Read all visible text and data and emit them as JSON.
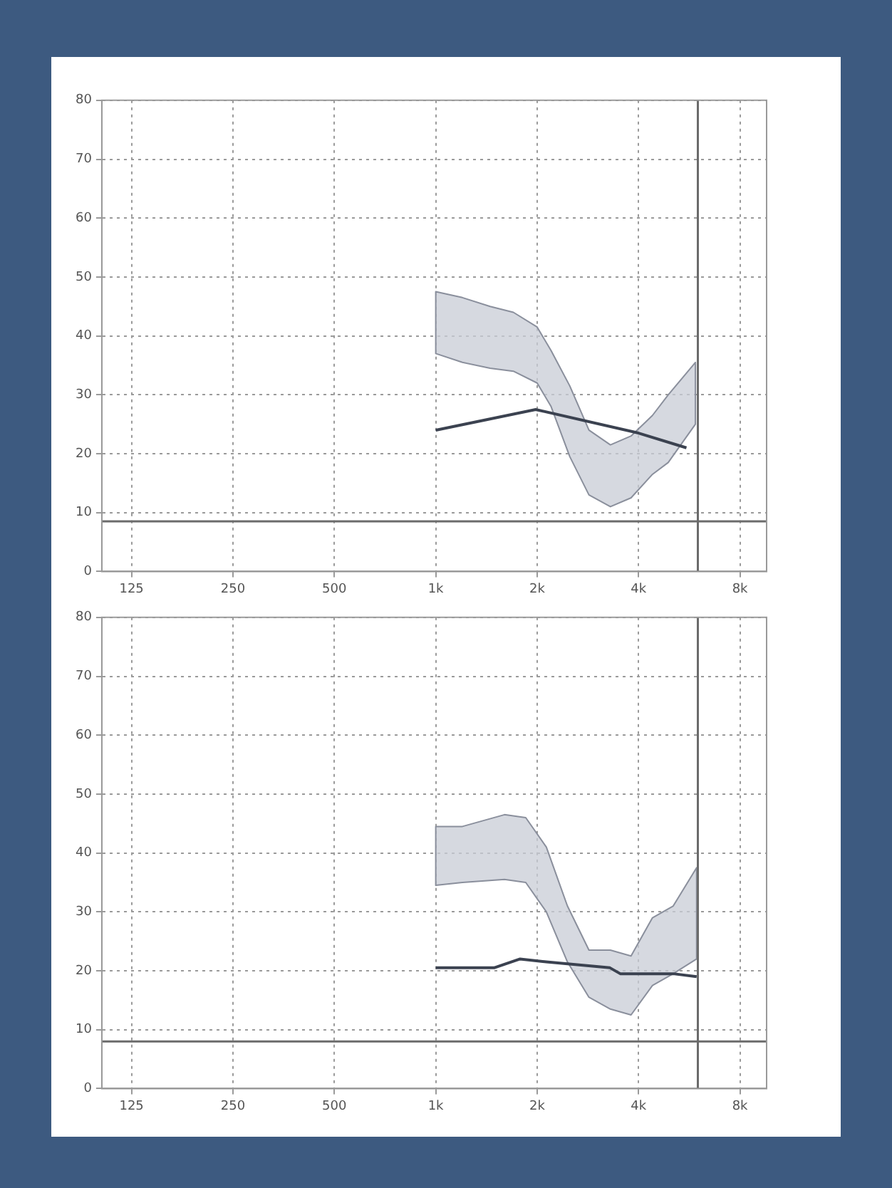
{
  "chart_data": [
    {
      "type": "line",
      "log": "x",
      "grid": true,
      "legend": false,
      "marker": "none",
      "line_style": "solid",
      "xlim": [
        102,
        9600
      ],
      "xticks": [
        {
          "value": 125,
          "label": "125"
        },
        {
          "value": 250,
          "label": "250"
        },
        {
          "value": 500,
          "label": "500"
        },
        {
          "value": 1000,
          "label": "1k"
        },
        {
          "value": 2000,
          "label": "2k"
        },
        {
          "value": 4000,
          "label": "4k"
        },
        {
          "value": 8000,
          "label": "8k"
        }
      ],
      "ylim": [
        0,
        80
      ],
      "yticks": [
        0,
        10,
        20,
        30,
        40,
        50,
        60,
        70,
        80
      ],
      "ref_lines": [
        {
          "axis": "x",
          "value": 6000,
          "color": "#6b6b6b"
        },
        {
          "axis": "y",
          "value": 8.5,
          "color": "#6b6b6b"
        }
      ],
      "series": [
        {
          "type": "area",
          "color": "#8a8f9c",
          "x": [
            1000,
            1200,
            1450,
            1700,
            2000,
            2200,
            2500,
            2850,
            3300,
            3800,
            4400,
            4900,
            5900
          ],
          "values": [
            null,
            null,
            null,
            null,
            null,
            null,
            null,
            null,
            null,
            null,
            null,
            null,
            null
          ],
          "upper": [
            47.5,
            46.5,
            45,
            44,
            41.5,
            37.5,
            31.5,
            24,
            21.5,
            23,
            26.5,
            30,
            35.5
          ],
          "lower": [
            37,
            35.5,
            34.5,
            34,
            32,
            28,
            19.5,
            13,
            11,
            12.5,
            16.5,
            18.5,
            25
          ]
        },
        {
          "type": "line",
          "color": "#3b4250",
          "x": [
            1000,
            1980,
            4000,
            5550
          ],
          "values": [
            24,
            27.5,
            23.5,
            21
          ]
        }
      ]
    },
    {
      "type": "line",
      "log": "x",
      "grid": true,
      "legend": false,
      "marker": "none",
      "line_style": "solid",
      "xlim": [
        102,
        9600
      ],
      "xticks": [
        {
          "value": 125,
          "label": "125"
        },
        {
          "value": 250,
          "label": "250"
        },
        {
          "value": 500,
          "label": "500"
        },
        {
          "value": 1000,
          "label": "1k"
        },
        {
          "value": 2000,
          "label": "2k"
        },
        {
          "value": 4000,
          "label": "4k"
        },
        {
          "value": 8000,
          "label": "8k"
        }
      ],
      "ylim": [
        0,
        80
      ],
      "yticks": [
        0,
        10,
        20,
        30,
        40,
        50,
        60,
        70,
        80
      ],
      "ref_lines": [
        {
          "axis": "x",
          "value": 6000,
          "color": "#6b6b6b"
        },
        {
          "axis": "y",
          "value": 8,
          "color": "#6b6b6b"
        }
      ],
      "series": [
        {
          "type": "area",
          "color": "#8a8f9c",
          "x": [
            1000,
            1200,
            1600,
            1850,
            2130,
            2460,
            2850,
            3300,
            3800,
            4400,
            5070,
            5950
          ],
          "values": [
            null,
            null,
            null,
            null,
            null,
            null,
            null,
            null,
            null,
            null,
            null,
            null
          ],
          "upper": [
            44.5,
            44.5,
            46.5,
            46,
            41,
            31,
            23.5,
            23.5,
            22.5,
            29,
            31,
            37.5
          ],
          "lower": [
            34.5,
            35,
            35.5,
            35,
            30,
            21.5,
            15.5,
            13.5,
            12.5,
            17.5,
            19.5,
            22
          ]
        },
        {
          "type": "line",
          "color": "#3b4250",
          "x": [
            1000,
            1490,
            1780,
            2130,
            3290,
            3530,
            5070,
            5950
          ],
          "values": [
            20.5,
            20.5,
            22,
            21.5,
            20.5,
            19.5,
            19.5,
            19
          ]
        }
      ]
    }
  ]
}
